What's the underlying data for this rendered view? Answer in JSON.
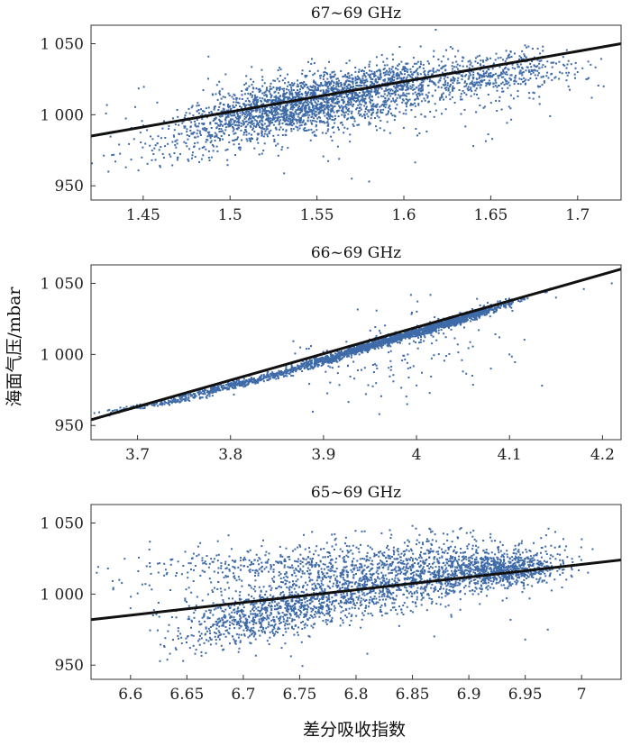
{
  "chart_data": [
    {
      "type": "scatter",
      "title": "67~69 GHz",
      "xlim": [
        1.42,
        1.725
      ],
      "ylim": [
        940,
        1063
      ],
      "xticks": [
        1.45,
        1.5,
        1.55,
        1.6,
        1.65,
        1.7
      ],
      "xtick_labels": [
        "1.45",
        "1.5",
        "1.55",
        "1.6",
        "1.65",
        "1.7"
      ],
      "yticks": [
        950,
        1000,
        1050
      ],
      "ytick_labels": [
        "950",
        "1 000",
        "1 050"
      ],
      "fit_line": {
        "x": [
          1.42,
          1.725
        ],
        "y": [
          985,
          1050
        ]
      },
      "clusters": [
        {
          "cx": 1.545,
          "cy": 1008,
          "sx": 0.03,
          "sy": 10,
          "r": 0.4,
          "n": 1500
        },
        {
          "cx": 1.6,
          "cy": 1023,
          "sx": 0.03,
          "sy": 9,
          "r": 0.3,
          "n": 700
        },
        {
          "cx": 1.5,
          "cy": 990,
          "sx": 0.03,
          "sy": 12,
          "r": 0.6,
          "n": 450
        },
        {
          "cx": 1.66,
          "cy": 1030,
          "sx": 0.02,
          "sy": 7,
          "r": 0.2,
          "n": 300
        },
        {
          "cx": 1.57,
          "cy": 1005,
          "sx": 0.06,
          "sy": 18,
          "r": 0.3,
          "n": 150
        }
      ],
      "points": [
        [
          1.43,
          960
        ],
        [
          1.44,
          963
        ],
        [
          1.455,
          968
        ],
        [
          1.47,
          970
        ],
        [
          1.57,
          955
        ],
        [
          1.58,
          953
        ],
        [
          1.64,
          978
        ],
        [
          1.68,
          1045
        ],
        [
          1.68,
          1048
        ],
        [
          1.7,
          1030
        ],
        [
          1.705,
          1025
        ],
        [
          1.715,
          1020
        ]
      ]
    },
    {
      "type": "scatter",
      "title": "66~69 GHz",
      "xlim": [
        3.65,
        4.22
      ],
      "ylim": [
        940,
        1063
      ],
      "xticks": [
        3.7,
        3.8,
        3.9,
        4.0,
        4.1,
        4.2
      ],
      "xtick_labels": [
        "3.7",
        "3.8",
        "3.9",
        "4",
        "4.1",
        "4.2"
      ],
      "yticks": [
        950,
        1000,
        1050
      ],
      "ytick_labels": [
        "950",
        "1 000",
        "1 050"
      ],
      "fit_line": {
        "x": [
          3.65,
          4.22
        ],
        "y": [
          954,
          1060
        ]
      },
      "clusters": [
        {
          "cx": 3.95,
          "cy": 1006,
          "sx": 0.055,
          "sy": 11,
          "r": 0.99,
          "n": 1300
        },
        {
          "cx": 4.05,
          "cy": 1025,
          "sx": 0.03,
          "sy": 7,
          "r": 0.97,
          "n": 500
        },
        {
          "cx": 3.8,
          "cy": 978,
          "sx": 0.04,
          "sy": 6,
          "r": 0.98,
          "n": 350
        },
        {
          "cx": 3.72,
          "cy": 965,
          "sx": 0.03,
          "sy": 3,
          "r": 0.97,
          "n": 120
        },
        {
          "cx": 3.97,
          "cy": 1000,
          "sx": 0.06,
          "sy": 16,
          "r": 0.3,
          "n": 150
        }
      ],
      "points": [
        [
          3.67,
          957
        ],
        [
          3.68,
          959
        ],
        [
          3.96,
          958
        ],
        [
          3.99,
          965
        ],
        [
          4.05,
          988
        ],
        [
          4.06,
          985
        ],
        [
          4.08,
          990
        ],
        [
          4.1,
          1000
        ],
        [
          4.135,
          978
        ],
        [
          4.15,
          1040
        ],
        [
          4.18,
          1046
        ],
        [
          4.21,
          1050
        ]
      ]
    },
    {
      "type": "scatter",
      "title": "65~69 GHz",
      "xlim": [
        6.565,
        7.035
      ],
      "ylim": [
        940,
        1063
      ],
      "xticks": [
        6.6,
        6.65,
        6.7,
        6.75,
        6.8,
        6.85,
        6.9,
        6.95,
        7.0
      ],
      "xtick_labels": [
        "6.6",
        "6.65",
        "6.7",
        "6.75",
        "6.8",
        "6.85",
        "6.9",
        "6.95",
        "7"
      ],
      "yticks": [
        950,
        1000,
        1050
      ],
      "ytick_labels": [
        "950",
        "1 000",
        "1 050"
      ],
      "fit_line": {
        "x": [
          6.565,
          7.035
        ],
        "y": [
          982,
          1024
        ]
      },
      "clusters": [
        {
          "cx": 6.85,
          "cy": 1012,
          "sx": 0.05,
          "sy": 12,
          "r": 0.4,
          "n": 1100
        },
        {
          "cx": 6.93,
          "cy": 1017,
          "sx": 0.025,
          "sy": 6,
          "r": 0.2,
          "n": 700
        },
        {
          "cx": 6.75,
          "cy": 993,
          "sx": 0.04,
          "sy": 12,
          "r": 0.5,
          "n": 800
        },
        {
          "cx": 6.69,
          "cy": 980,
          "sx": 0.03,
          "sy": 10,
          "r": 0.3,
          "n": 250
        },
        {
          "cx": 6.72,
          "cy": 1020,
          "sx": 0.05,
          "sy": 5,
          "r": 0.0,
          "n": 250
        },
        {
          "cx": 6.82,
          "cy": 1030,
          "sx": 0.05,
          "sy": 7,
          "r": 0.0,
          "n": 150
        },
        {
          "cx": 6.65,
          "cy": 1010,
          "sx": 0.04,
          "sy": 10,
          "r": 0.0,
          "n": 60
        }
      ],
      "points": [
        [
          6.57,
          1015
        ],
        [
          6.58,
          1018
        ],
        [
          6.59,
          1010
        ],
        [
          6.6,
          990
        ],
        [
          6.62,
          985
        ],
        [
          6.635,
          958
        ],
        [
          6.64,
          962
        ],
        [
          6.66,
          967
        ],
        [
          6.81,
          958
        ],
        [
          6.83,
          1045
        ],
        [
          6.85,
          1048
        ],
        [
          6.87,
          1042
        ],
        [
          6.89,
          1040
        ],
        [
          6.9,
          1035
        ],
        [
          6.95,
          968
        ],
        [
          6.97,
          975
        ]
      ]
    }
  ],
  "shared_ylabel": "海面气压/mbar",
  "shared_xlabel": "差分吸收指数",
  "colors": {
    "points": "#3e6aa8",
    "fit_line": "#111111",
    "axis": "#333333"
  }
}
